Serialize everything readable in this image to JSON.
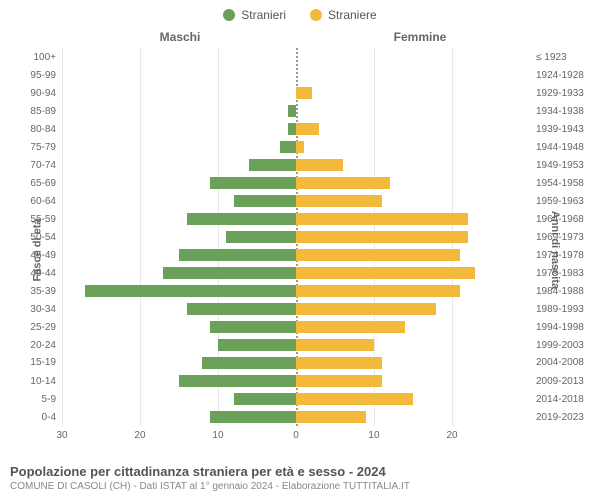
{
  "legend": {
    "male": {
      "label": "Stranieri",
      "color": "#6aa05a"
    },
    "female": {
      "label": "Straniere",
      "color": "#f2b93b"
    }
  },
  "column_headers": {
    "left": "Maschi",
    "right": "Femmine"
  },
  "axis_labels": {
    "left": "Fasce di età",
    "right": "Anni di nascita"
  },
  "chart": {
    "type": "population-pyramid",
    "x_max": 30,
    "x_ticks_left": [
      30,
      20,
      10,
      0
    ],
    "x_ticks_right": [
      0,
      10,
      20
    ],
    "background_color": "#ffffff",
    "grid_color": "#e8e8e8",
    "center_line_color": "#999999",
    "tick_fontsize": 10,
    "label_fontsize": 11,
    "bar_colors": {
      "male": "#6aa05a",
      "female": "#f2b93b"
    },
    "rows": [
      {
        "age": "100+",
        "year": "≤ 1923",
        "male": 0,
        "female": 0
      },
      {
        "age": "95-99",
        "year": "1924-1928",
        "male": 0,
        "female": 0
      },
      {
        "age": "90-94",
        "year": "1929-1933",
        "male": 0,
        "female": 2
      },
      {
        "age": "85-89",
        "year": "1934-1938",
        "male": 1,
        "female": 0
      },
      {
        "age": "80-84",
        "year": "1939-1943",
        "male": 1,
        "female": 3
      },
      {
        "age": "75-79",
        "year": "1944-1948",
        "male": 2,
        "female": 1
      },
      {
        "age": "70-74",
        "year": "1949-1953",
        "male": 6,
        "female": 6
      },
      {
        "age": "65-69",
        "year": "1954-1958",
        "male": 11,
        "female": 12
      },
      {
        "age": "60-64",
        "year": "1959-1963",
        "male": 8,
        "female": 11
      },
      {
        "age": "55-59",
        "year": "1964-1968",
        "male": 14,
        "female": 22
      },
      {
        "age": "50-54",
        "year": "1969-1973",
        "male": 9,
        "female": 22
      },
      {
        "age": "45-49",
        "year": "1974-1978",
        "male": 15,
        "female": 21
      },
      {
        "age": "40-44",
        "year": "1979-1983",
        "male": 17,
        "female": 23
      },
      {
        "age": "35-39",
        "year": "1984-1988",
        "male": 27,
        "female": 21
      },
      {
        "age": "30-34",
        "year": "1989-1993",
        "male": 14,
        "female": 18
      },
      {
        "age": "25-29",
        "year": "1994-1998",
        "male": 11,
        "female": 14
      },
      {
        "age": "20-24",
        "year": "1999-2003",
        "male": 10,
        "female": 10
      },
      {
        "age": "15-19",
        "year": "2004-2008",
        "male": 12,
        "female": 11
      },
      {
        "age": "10-14",
        "year": "2009-2013",
        "male": 15,
        "female": 11
      },
      {
        "age": "5-9",
        "year": "2014-2018",
        "male": 8,
        "female": 15
      },
      {
        "age": "0-4",
        "year": "2019-2023",
        "male": 11,
        "female": 9
      }
    ]
  },
  "footer": {
    "title": "Popolazione per cittadinanza straniera per età e sesso - 2024",
    "subtitle": "COMUNE DI CASOLI (CH) - Dati ISTAT al 1° gennaio 2024 - Elaborazione TUTTITALIA.IT"
  }
}
